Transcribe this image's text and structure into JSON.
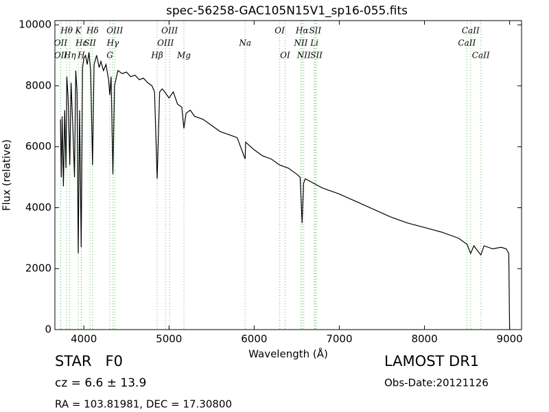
{
  "chart_data": {
    "type": "line",
    "title": "spec-56258-GAC105N15V1_sp16-055.fits",
    "x_label": "Wavelength (Å)",
    "y_label": "Flux (relative)",
    "xlim": [
      3660,
      9140
    ],
    "ylim": [
      0,
      10140
    ],
    "xticks": [
      4000,
      5000,
      6000,
      7000,
      8000,
      9000
    ],
    "yticks": [
      0,
      2000,
      4000,
      6000,
      8000,
      10000
    ],
    "line_color": "#5cb85c",
    "spectral_lines": [
      [
        {
          "label": "Hθ",
          "x": 3798
        },
        {
          "label": "K",
          "x": 3934
        },
        {
          "label": "Hδ",
          "x": 4102
        },
        {
          "label": "OIII",
          "x": 4363
        },
        {
          "label": "OIII",
          "x": 5007
        },
        {
          "label": "OI",
          "x": 6300
        },
        {
          "label": "Hα",
          "x": 6563
        },
        {
          "label": "SII",
          "x": 6716
        },
        {
          "label": "CaII",
          "x": 8542
        }
      ],
      [
        {
          "label": "OII",
          "x": 3727
        },
        {
          "label": "Hε",
          "x": 3970
        },
        {
          "label": "SII",
          "x": 4072
        },
        {
          "label": "Hγ",
          "x": 4341
        },
        {
          "label": "OIII",
          "x": 4959
        },
        {
          "label": "Na",
          "x": 5894
        },
        {
          "label": "NII",
          "x": 6548
        },
        {
          "label": "Li",
          "x": 6707
        },
        {
          "label": "CaII",
          "x": 8498
        }
      ],
      [
        {
          "label": "OII",
          "x": 3729
        },
        {
          "label": "Hη",
          "x": 3835
        },
        {
          "label": "H",
          "x": 3969
        },
        {
          "label": "G",
          "x": 4305
        },
        {
          "label": "Hβ",
          "x": 4861
        },
        {
          "label": "Mg",
          "x": 5175
        },
        {
          "label": "OI",
          "x": 6363
        },
        {
          "label": "NII",
          "x": 6583
        },
        {
          "label": "SII",
          "x": 6731
        },
        {
          "label": "CaII",
          "x": 8662
        }
      ]
    ],
    "series": [
      {
        "name": "flux",
        "color": "#000000",
        "x": [
          3725,
          3735,
          3745,
          3760,
          3775,
          3790,
          3800,
          3815,
          3835,
          3850,
          3870,
          3890,
          3905,
          3920,
          3934,
          3950,
          3969,
          3985,
          4000,
          4020,
          4040,
          4060,
          4080,
          4102,
          4120,
          4150,
          4180,
          4200,
          4230,
          4260,
          4290,
          4305,
          4320,
          4341,
          4360,
          4400,
          4450,
          4500,
          4550,
          4600,
          4650,
          4700,
          4750,
          4800,
          4830,
          4861,
          4890,
          4920,
          4950,
          5000,
          5050,
          5100,
          5150,
          5175,
          5200,
          5250,
          5300,
          5400,
          5500,
          5600,
          5700,
          5800,
          5894,
          5900,
          6000,
          6100,
          6200,
          6300,
          6400,
          6500,
          6540,
          6563,
          6580,
          6600,
          6700,
          6800,
          7000,
          7200,
          7400,
          7600,
          7800,
          8000,
          8200,
          8400,
          8500,
          8542,
          8580,
          8662,
          8700,
          8800,
          8900,
          8960,
          8990,
          9000
        ],
        "values": [
          6900,
          5000,
          7000,
          4700,
          7200,
          5300,
          8300,
          7600,
          5400,
          8100,
          6700,
          5000,
          8500,
          7800,
          2500,
          7200,
          2700,
          8600,
          8900,
          9000,
          8700,
          9100,
          8500,
          5400,
          8700,
          9000,
          8600,
          8800,
          8500,
          8700,
          8200,
          7700,
          8300,
          5100,
          8000,
          8500,
          8400,
          8450,
          8300,
          8350,
          8200,
          8250,
          8100,
          8000,
          7800,
          4950,
          7800,
          7900,
          7800,
          7600,
          7800,
          7400,
          7300,
          6600,
          7100,
          7200,
          7000,
          6900,
          6700,
          6500,
          6400,
          6300,
          5600,
          6150,
          5900,
          5700,
          5600,
          5400,
          5300,
          5100,
          5000,
          3500,
          4800,
          4950,
          4800,
          4650,
          4450,
          4200,
          3950,
          3700,
          3500,
          3350,
          3200,
          3000,
          2800,
          2500,
          2750,
          2450,
          2750,
          2650,
          2700,
          2650,
          2500,
          0
        ]
      }
    ],
    "footer": {
      "object": "STAR   F0",
      "survey": "LAMOST DR1",
      "redshift": "cz = 6.6 ± 13.9",
      "date": "Obs-Date:20121126",
      "coords": "RA = 103.81981, DEC = 17.30800"
    }
  }
}
